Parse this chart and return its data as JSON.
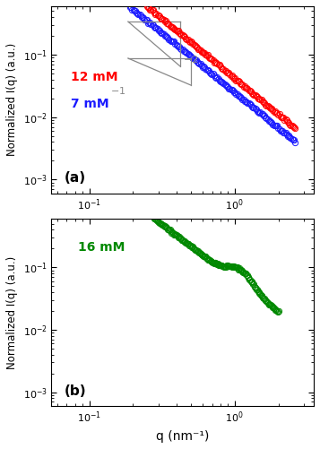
{
  "title_a": "(a)",
  "title_b": "(b)",
  "label_12mM": "12 mM",
  "label_7mM": "7 mM",
  "label_16mM": "16 mM",
  "color_12mM": "#ff0000",
  "color_7mM": "#1a1aff",
  "color_16mM": "#008800",
  "color_slope": "#888888",
  "ylabel": "Normalized I(q) (a.u.)",
  "xlabel": "q (nm⁻¹)",
  "xlim": [
    0.055,
    3.5
  ],
  "ylim": [
    0.0006,
    0.6
  ],
  "marker_size": 4.5,
  "marker_lw": 0.7,
  "figsize": [
    3.57,
    5.01
  ],
  "dpi": 100
}
